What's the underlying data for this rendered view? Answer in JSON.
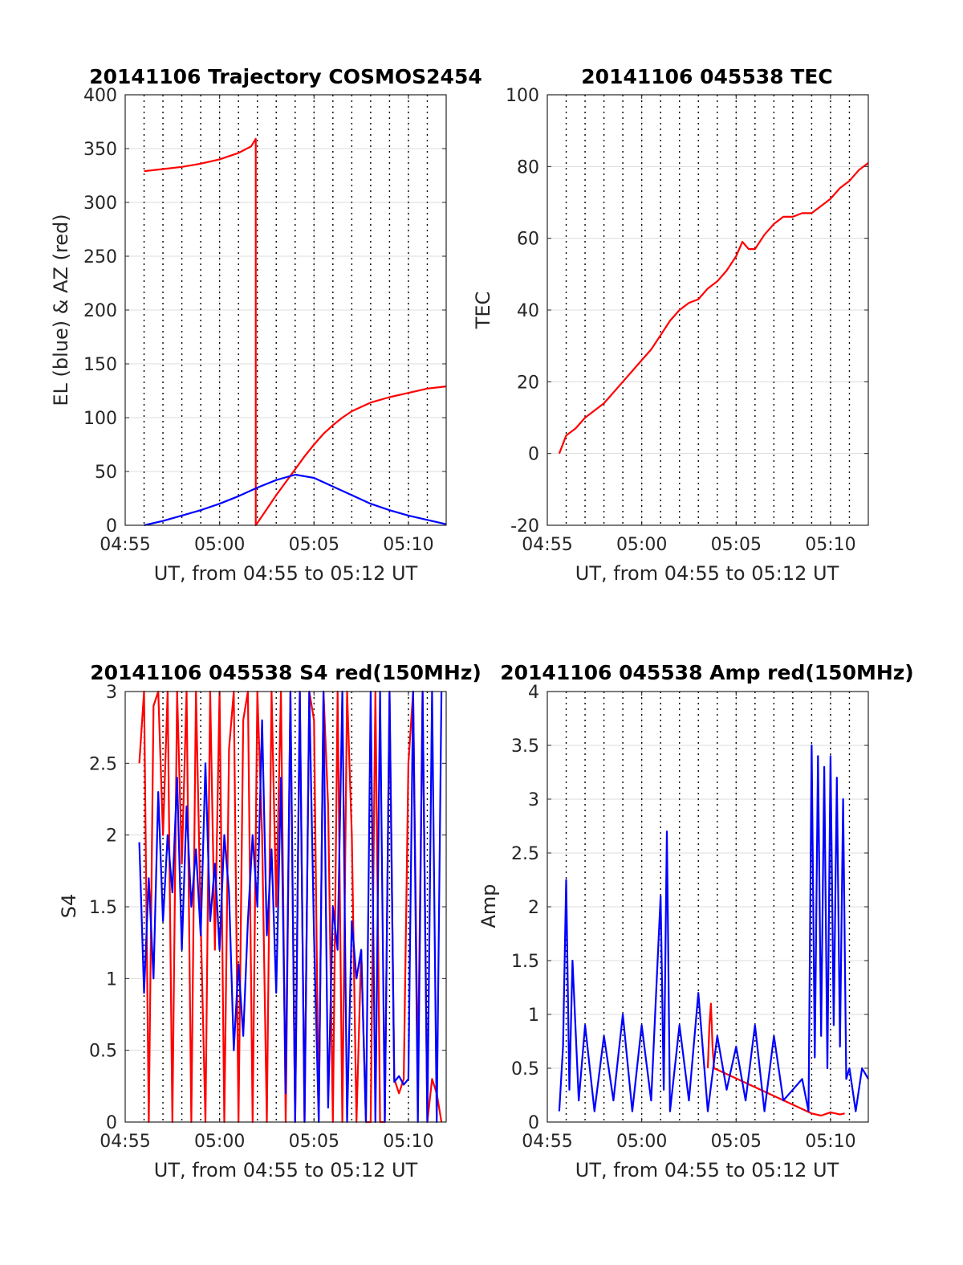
{
  "figure": {
    "background": "#ffffff"
  },
  "chart_data": [
    {
      "id": "traj",
      "type": "line",
      "title": "20141106 Trajectory COSMOS2454",
      "xlabel": "UT, from 04:55 to 05:12 UT",
      "ylabel": "EL (blue) & AZ (red)",
      "xlim": [
        "04:55",
        "05:12"
      ],
      "xticks": [
        "04:55",
        "05:00",
        "05:05",
        "05:10"
      ],
      "ylim": [
        0,
        400
      ],
      "yticks": [
        "0",
        "50",
        "100",
        "150",
        "200",
        "250",
        "300",
        "350",
        "400"
      ],
      "grid": true,
      "series": [
        {
          "color": "#ff0000",
          "x": [
            "04:56:00",
            "04:57:00",
            "04:58:00",
            "04:59:00",
            "05:00:00",
            "05:01:00",
            "05:01:40",
            "05:01:55",
            "05:01:55",
            "05:02:30",
            "05:03:00",
            "05:03:30",
            "05:04:00",
            "05:04:30",
            "05:05:00",
            "05:05:30",
            "05:06:00",
            "05:06:30",
            "05:07:00",
            "05:08:00",
            "05:09:00",
            "05:10:00",
            "05:11:00",
            "05:12:00"
          ],
          "y": [
            329,
            331,
            333,
            336,
            340,
            346,
            352,
            359,
            0,
            15,
            28,
            40,
            52,
            64,
            75,
            85,
            93,
            100,
            106,
            114,
            119,
            123,
            127,
            129
          ]
        },
        {
          "color": "#0000ff",
          "x": [
            "04:56:00",
            "04:57:00",
            "04:58:00",
            "04:59:00",
            "05:00:00",
            "05:01:00",
            "05:02:00",
            "05:03:00",
            "05:04:00",
            "05:05:00",
            "05:06:00",
            "05:07:00",
            "05:08:00",
            "05:09:00",
            "05:10:00",
            "05:11:00",
            "05:12:00"
          ],
          "y": [
            0,
            4,
            9,
            14,
            20,
            27,
            35,
            42,
            47,
            44,
            36,
            28,
            20,
            14,
            9,
            5,
            1
          ]
        }
      ]
    },
    {
      "id": "tec",
      "type": "line",
      "title": "20141106 045538 TEC",
      "xlabel": "UT, from 04:55 to 05:12 UT",
      "ylabel": "TEC",
      "xlim": [
        "04:55",
        "05:12"
      ],
      "xticks": [
        "04:55",
        "05:00",
        "05:05",
        "05:10"
      ],
      "ylim": [
        -20,
        100
      ],
      "yticks": [
        "-20",
        "0",
        "20",
        "40",
        "60",
        "80",
        "100"
      ],
      "grid": true,
      "series": [
        {
          "color": "#ff0000",
          "x": [
            "04:55:38",
            "04:56:00",
            "04:56:30",
            "04:57:00",
            "04:57:30",
            "04:58:00",
            "04:58:30",
            "04:59:00",
            "04:59:30",
            "05:00:00",
            "05:00:30",
            "05:01:00",
            "05:01:30",
            "05:02:00",
            "05:02:30",
            "05:03:00",
            "05:03:30",
            "05:04:00",
            "05:04:30",
            "05:05:00",
            "05:05:20",
            "05:05:40",
            "05:06:00",
            "05:06:30",
            "05:07:00",
            "05:07:30",
            "05:08:00",
            "05:08:30",
            "05:09:00",
            "05:09:30",
            "05:10:00",
            "05:10:30",
            "05:11:00",
            "05:11:30",
            "05:12:00"
          ],
          "y": [
            0,
            5,
            7,
            10,
            12,
            14,
            17,
            20,
            23,
            26,
            29,
            33,
            37,
            40,
            42,
            43,
            46,
            48,
            51,
            55,
            59,
            57,
            57,
            61,
            64,
            66,
            66,
            67,
            67,
            69,
            71,
            74,
            76,
            79,
            81
          ]
        }
      ]
    },
    {
      "id": "s4",
      "type": "line",
      "title": "20141106 045538 S4 red(150MHz)",
      "xlabel": "UT, from 04:55 to 05:12 UT",
      "ylabel": "S4",
      "xlim": [
        "04:55",
        "05:12"
      ],
      "xticks": [
        "04:55",
        "05:00",
        "05:05",
        "05:10"
      ],
      "ylim": [
        0,
        3
      ],
      "yticks": [
        "0",
        "0.5",
        "1",
        "1.5",
        "2",
        "2.5",
        "3"
      ],
      "grid": true,
      "series": [
        {
          "color": "#ff0000",
          "x": [
            "04:55:45",
            "04:56:00",
            "04:56:15",
            "04:56:30",
            "04:56:45",
            "04:57:00",
            "04:57:15",
            "04:57:30",
            "04:57:45",
            "04:58:00",
            "04:58:15",
            "04:58:30",
            "04:58:45",
            "04:59:00",
            "04:59:15",
            "04:59:30",
            "04:59:45",
            "05:00:00",
            "05:00:15",
            "05:00:30",
            "05:00:45",
            "05:01:00",
            "05:01:15",
            "05:01:30",
            "05:01:45",
            "05:02:00",
            "05:02:15",
            "05:02:30",
            "05:02:45",
            "05:03:00",
            "05:03:15",
            "05:03:30",
            "05:03:45",
            "05:04:00",
            "05:04:15",
            "05:04:30",
            "05:04:45",
            "05:05:00",
            "05:05:15",
            "05:05:30",
            "05:05:45",
            "05:06:00",
            "05:06:15",
            "05:06:30",
            "05:06:45",
            "05:07:00",
            "05:07:15",
            "05:07:30",
            "05:07:45",
            "05:08:00",
            "05:08:15",
            "05:08:30",
            "05:08:45",
            "05:09:00",
            "05:09:15",
            "05:09:30",
            "05:09:45",
            "05:10:00",
            "05:10:15",
            "05:10:30",
            "05:10:45",
            "05:11:00",
            "05:11:15",
            "05:11:30",
            "05:11:45"
          ],
          "y": [
            2.5,
            3.0,
            0.0,
            2.9,
            3.0,
            2.0,
            3.0,
            0.0,
            3.0,
            1.8,
            3.0,
            0.0,
            3.0,
            1.4,
            0.0,
            3.0,
            1.2,
            3.0,
            0.0,
            2.6,
            3.0,
            0.0,
            2.8,
            3.0,
            0.0,
            3.0,
            2.0,
            0.0,
            3.0,
            1.5,
            3.0,
            0.0,
            3.0,
            0.0,
            3.0,
            0.0,
            3.0,
            2.8,
            0.0,
            3.0,
            2.2,
            0.0,
            3.0,
            0.0,
            3.0,
            2.0,
            0.0,
            1.2,
            0.0,
            0.0,
            3.0,
            0.0,
            0.0,
            3.0,
            0.3,
            0.2,
            0.3,
            2.5,
            3.0,
            0.3,
            3.0,
            0.0,
            0.3,
            0.2,
            0.0
          ]
        },
        {
          "color": "#0000ff",
          "x": [
            "04:55:45",
            "04:56:00",
            "04:56:15",
            "04:56:30",
            "04:56:45",
            "04:57:00",
            "04:57:15",
            "04:57:30",
            "04:57:45",
            "04:58:00",
            "04:58:15",
            "04:58:30",
            "04:58:45",
            "04:59:00",
            "04:59:15",
            "04:59:30",
            "04:59:45",
            "05:00:00",
            "05:00:15",
            "05:00:30",
            "05:00:45",
            "05:01:00",
            "05:01:15",
            "05:01:30",
            "05:01:45",
            "05:02:00",
            "05:02:15",
            "05:02:30",
            "05:02:45",
            "05:03:00",
            "05:03:15",
            "05:03:30",
            "05:03:45",
            "05:04:00",
            "05:04:15",
            "05:04:30",
            "05:04:45",
            "05:05:00",
            "05:05:15",
            "05:05:30",
            "05:05:45",
            "05:06:00",
            "05:06:15",
            "05:06:30",
            "05:06:45",
            "05:07:00",
            "05:07:15",
            "05:07:30",
            "05:07:45",
            "05:08:00",
            "05:08:15",
            "05:08:30",
            "05:08:45",
            "05:09:00",
            "05:09:15",
            "05:09:30",
            "05:09:45",
            "05:10:00",
            "05:10:15",
            "05:10:30",
            "05:10:45",
            "05:11:00",
            "05:11:15",
            "05:11:30",
            "05:11:45"
          ],
          "y": [
            1.95,
            0.9,
            1.7,
            1.0,
            2.3,
            1.4,
            2.0,
            1.6,
            2.4,
            1.2,
            2.2,
            1.5,
            1.9,
            1.3,
            2.5,
            1.4,
            1.8,
            1.2,
            2.0,
            1.6,
            0.5,
            1.1,
            0.6,
            1.4,
            2.0,
            1.5,
            2.8,
            1.3,
            1.9,
            0.9,
            2.4,
            0.2,
            3.0,
            0.0,
            3.0,
            0.0,
            3.0,
            1.3,
            0.0,
            3.0,
            0.1,
            1.5,
            1.2,
            3.0,
            0.0,
            1.4,
            1.0,
            1.2,
            0.0,
            3.0,
            0.0,
            3.0,
            0.0,
            3.0,
            0.28,
            0.32,
            0.26,
            0.3,
            3.0,
            0.0,
            3.0,
            0.0,
            3.0,
            0.0,
            3.0
          ]
        }
      ]
    },
    {
      "id": "amp",
      "type": "line",
      "title": "20141106 045538 Amp red(150MHz)",
      "xlabel": "UT, from 04:55 to 05:12 UT",
      "ylabel": "Amp",
      "xlim": [
        "04:55",
        "05:12"
      ],
      "xticks": [
        "04:55",
        "05:00",
        "05:05",
        "05:10"
      ],
      "ylim": [
        0,
        4
      ],
      "yticks": [
        "0",
        "0.5",
        "1",
        "1.5",
        "2",
        "2.5",
        "3",
        "3.5",
        "4"
      ],
      "grid": true,
      "series": [
        {
          "color": "#ff0000",
          "x": [
            "05:03:30",
            "05:03:35",
            "05:03:40",
            "05:03:45",
            "05:03:50",
            "05:09:00",
            "05:09:30",
            "05:10:00",
            "05:10:30",
            "05:10:45"
          ],
          "y": [
            0.5,
            0.9,
            1.1,
            0.7,
            0.5,
            0.08,
            0.06,
            0.09,
            0.07,
            0.08
          ]
        },
        {
          "color": "#0000ff",
          "x": [
            "04:55:38",
            "04:55:50",
            "04:56:00",
            "04:56:10",
            "04:56:20",
            "04:56:40",
            "04:57:00",
            "04:57:30",
            "04:58:00",
            "04:58:30",
            "04:59:00",
            "04:59:30",
            "05:00:00",
            "05:00:30",
            "05:01:00",
            "05:01:10",
            "05:01:20",
            "05:01:30",
            "05:02:00",
            "05:02:30",
            "05:03:00",
            "05:03:30",
            "05:04:00",
            "05:04:30",
            "05:05:00",
            "05:05:30",
            "05:06:00",
            "05:06:30",
            "05:07:00",
            "05:07:30",
            "05:08:00",
            "05:08:30",
            "05:08:50",
            "05:09:00",
            "05:09:10",
            "05:09:20",
            "05:09:30",
            "05:09:40",
            "05:09:50",
            "05:10:00",
            "05:10:10",
            "05:10:20",
            "05:10:30",
            "05:10:40",
            "05:10:50",
            "05:11:00",
            "05:11:20",
            "05:11:40",
            "05:12:00"
          ],
          "y": [
            0.1,
            0.7,
            2.25,
            0.3,
            1.5,
            0.2,
            0.9,
            0.1,
            0.8,
            0.2,
            1.0,
            0.1,
            0.9,
            0.2,
            2.1,
            0.3,
            2.7,
            0.1,
            0.9,
            0.2,
            1.2,
            0.1,
            0.8,
            0.3,
            0.7,
            0.2,
            0.9,
            0.1,
            0.8,
            0.2,
            0.3,
            0.4,
            0.1,
            3.5,
            0.6,
            3.4,
            0.8,
            3.3,
            0.5,
            3.4,
            0.9,
            3.2,
            0.7,
            3.0,
            0.4,
            0.5,
            0.1,
            0.5,
            0.4
          ]
        }
      ]
    }
  ]
}
